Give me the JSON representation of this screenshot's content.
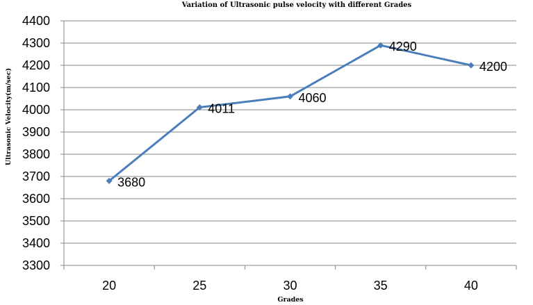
{
  "chart_data": {
    "type": "line",
    "title": "Variation of Ultrasonic pulse velocity with different Grades",
    "xlabel": "Grades",
    "ylabel": "Ultrasonic Velocity(m/sec)",
    "categories": [
      "20",
      "25",
      "30",
      "35",
      "40"
    ],
    "series": [
      {
        "values": [
          3680,
          4011,
          4060,
          4290,
          4200
        ],
        "color": "#4a7ebb"
      }
    ],
    "data_labels": [
      "3680",
      "4011",
      "4060",
      "4290",
      "4200"
    ],
    "ylim": [
      3300,
      4400
    ],
    "ytick_step": 100,
    "yticks": [
      "3300",
      "3400",
      "3500",
      "3600",
      "3700",
      "3800",
      "3900",
      "4000",
      "4100",
      "4200",
      "4300",
      "4400"
    ],
    "grid": true,
    "legend": "none",
    "marker": "diamond"
  }
}
